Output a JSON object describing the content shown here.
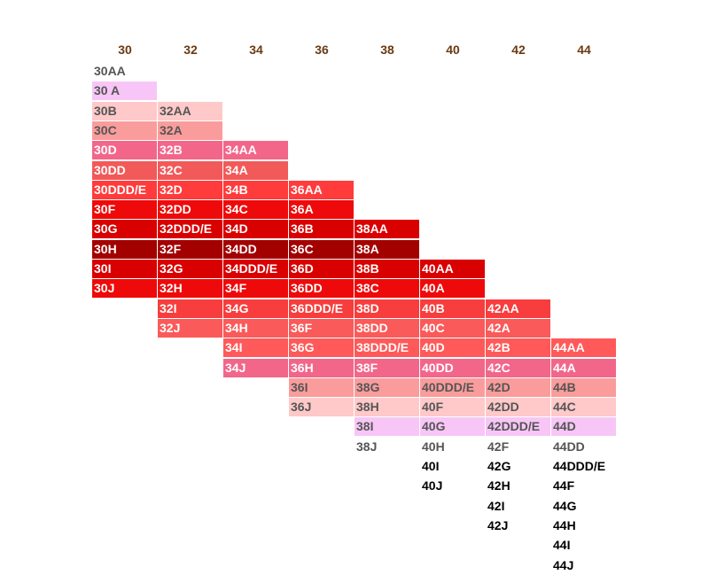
{
  "chart_data": {
    "type": "table",
    "title": "",
    "columns": [
      "30",
      "32",
      "34",
      "36",
      "38",
      "40",
      "42",
      "44"
    ],
    "column_cells": [
      [
        "30AA",
        "30 A",
        "30B",
        "30C",
        "30D",
        "30DD",
        "30DDD/E",
        "30F",
        "30G",
        "30H",
        "30I",
        "30J"
      ],
      [
        "32AA",
        "32A",
        "32B",
        "32C",
        "32D",
        "32DD",
        "32DDD/E",
        "32F",
        "32G",
        "32H",
        "32I",
        "32J"
      ],
      [
        "34AA",
        "34A",
        "34B",
        "34C",
        "34D",
        "34DD",
        "34DDD/E",
        "34F",
        "34G",
        "34H",
        "34I",
        "34J"
      ],
      [
        "36AA",
        "36A",
        "36B",
        "36C",
        "36D",
        "36DD",
        "36DDD/E",
        "36F",
        "36G",
        "36H",
        "36I",
        "36J"
      ],
      [
        "38AA",
        "38A",
        "38B",
        "38C",
        "38D",
        "38DD",
        "38DDD/E",
        "38F",
        "38G",
        "38H",
        "38I",
        "38J"
      ],
      [
        "40AA",
        "40A",
        "40B",
        "40C",
        "40D",
        "40DD",
        "40DDD/E",
        "40F",
        "40G",
        "40H",
        "40I",
        "40J"
      ],
      [
        "42AA",
        "42A",
        "42B",
        "42C",
        "42D",
        "42DD",
        "42DDD/E",
        "42F",
        "42G",
        "42H",
        "42I",
        "42J"
      ],
      [
        "44AA",
        "44A",
        "44B",
        "44C",
        "44D",
        "44DD",
        "44DDD/E",
        "44F",
        "44G",
        "44H",
        "44I",
        "44J"
      ]
    ],
    "row_colors": [
      "#ffffff",
      "#f7c6f7",
      "#ffc9c9",
      "#fa9c9c",
      "#f2668a",
      "#f25959",
      "#ff3b3b",
      "#ee0a0a",
      "#d90000",
      "#a30000",
      "#d90000",
      "#ee0a0a",
      "#f73d3d",
      "#fa5a5a",
      "#ff5959",
      "#f2668a",
      "#fa9c9c",
      "#ffc9c9",
      "#f7c6f7",
      "#ffffff"
    ],
    "row_text_colors": [
      "#555555",
      "#555555",
      "#555555",
      "#555555",
      "#ffffff",
      "#ffffff",
      "#ffffff",
      "#ffffff",
      "#ffffff",
      "#ffffff",
      "#ffffff",
      "#ffffff",
      "#ffffff",
      "#ffffff",
      "#ffffff",
      "#ffffff",
      "#555555",
      "#555555",
      "#555555",
      "#555555"
    ],
    "header_color": "#6b3a12",
    "row_offset_per_column": 2
  }
}
